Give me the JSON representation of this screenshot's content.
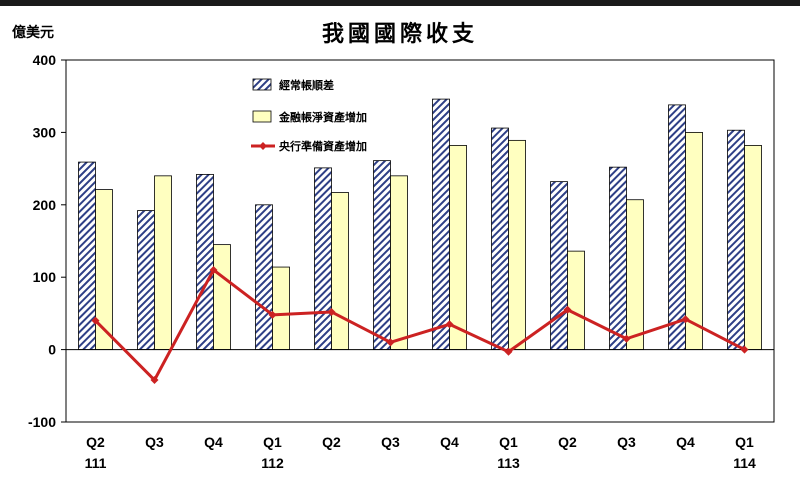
{
  "chart_data": {
    "type": "bar",
    "title": "我國國際收支",
    "unit": "億美元",
    "ylim": [
      -100,
      400
    ],
    "yticks": [
      -100,
      0,
      100,
      200,
      300,
      400
    ],
    "categories": [
      "Q2",
      "Q3",
      "Q4",
      "Q1",
      "Q2",
      "Q3",
      "Q4",
      "Q1",
      "Q2",
      "Q3",
      "Q4",
      "Q1"
    ],
    "year_labels": [
      "111",
      "",
      "",
      "112",
      "",
      "",
      "",
      "113",
      "",
      "",
      "",
      "114"
    ],
    "grid": false,
    "legend_position": "top-left inside plot",
    "series": [
      {
        "name": "經常帳順差",
        "kind": "bar",
        "pattern": "diagonal-hatch",
        "color": "#2e3f86",
        "values": [
          259,
          192,
          242,
          200,
          251,
          261,
          346,
          306,
          232,
          252,
          338,
          303
        ]
      },
      {
        "name": "金融帳淨資產增加",
        "kind": "bar",
        "color": "#ffffc0",
        "values": [
          221,
          240,
          145,
          114,
          217,
          240,
          282,
          289,
          136,
          207,
          300,
          282
        ]
      },
      {
        "name": "央行準備資產增加",
        "kind": "line",
        "color": "#cc2222",
        "values": [
          40,
          -42,
          110,
          48,
          52,
          10,
          35,
          -3,
          55,
          15,
          42,
          0
        ]
      }
    ]
  }
}
